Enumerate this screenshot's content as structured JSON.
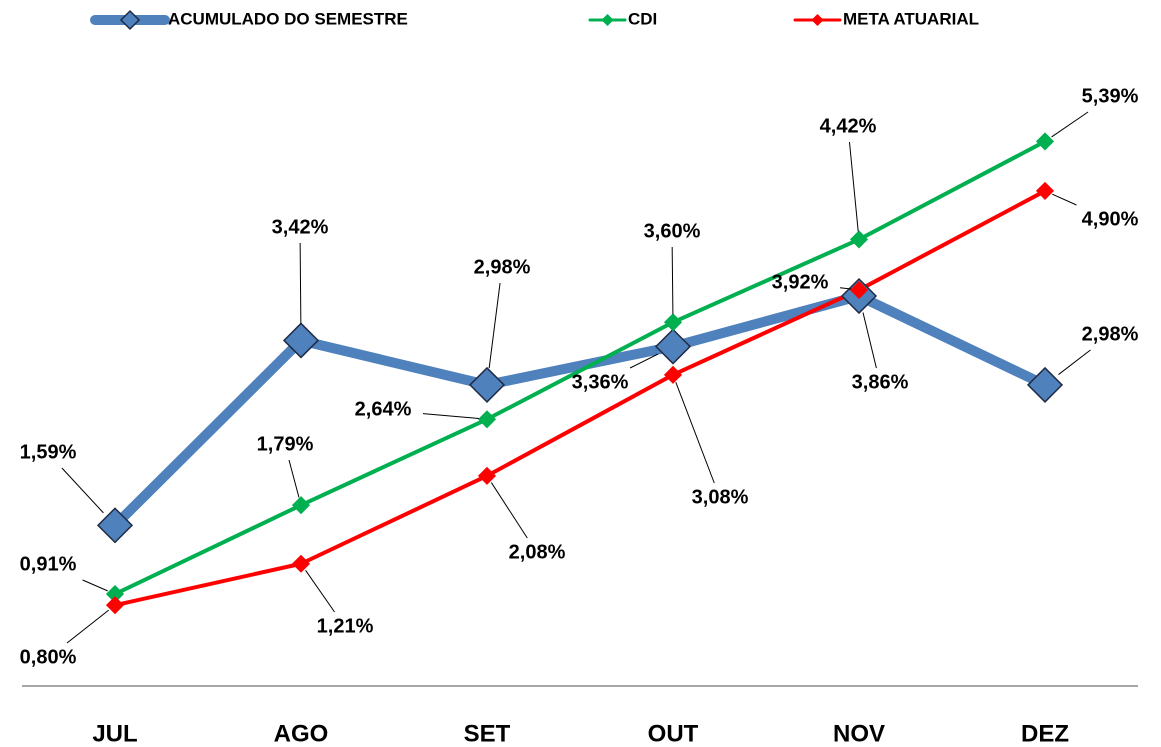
{
  "chart_data": {
    "type": "line",
    "categories": [
      "JUL",
      "AGO",
      "SET",
      "OUT",
      "NOV",
      "DEZ"
    ],
    "series": [
      {
        "name": "ACUMULADO DO SEMESTRE",
        "color": "#4f81bd",
        "values": [
          1.59,
          3.42,
          2.98,
          3.36,
          3.86,
          2.98
        ],
        "value_labels": [
          "1,59%",
          "3,42%",
          "2,98%",
          "3,36%",
          "3,86%",
          "2,98%"
        ]
      },
      {
        "name": "CDI",
        "color": "#00b050",
        "values": [
          0.91,
          1.79,
          2.64,
          3.6,
          4.42,
          5.39
        ],
        "value_labels": [
          "0,91%",
          "1,79%",
          "2,64%",
          "3,60%",
          "4,42%",
          "5,39%"
        ]
      },
      {
        "name": "META ATUARIAL",
        "color": "#ff0000",
        "values": [
          0.8,
          1.21,
          2.08,
          3.08,
          3.92,
          4.9
        ],
        "value_labels": [
          "0,80%",
          "1,21%",
          "2,08%",
          "3,08%",
          "3,92%",
          "4,90%"
        ]
      }
    ],
    "ylim": [
      0,
      5.8
    ]
  }
}
